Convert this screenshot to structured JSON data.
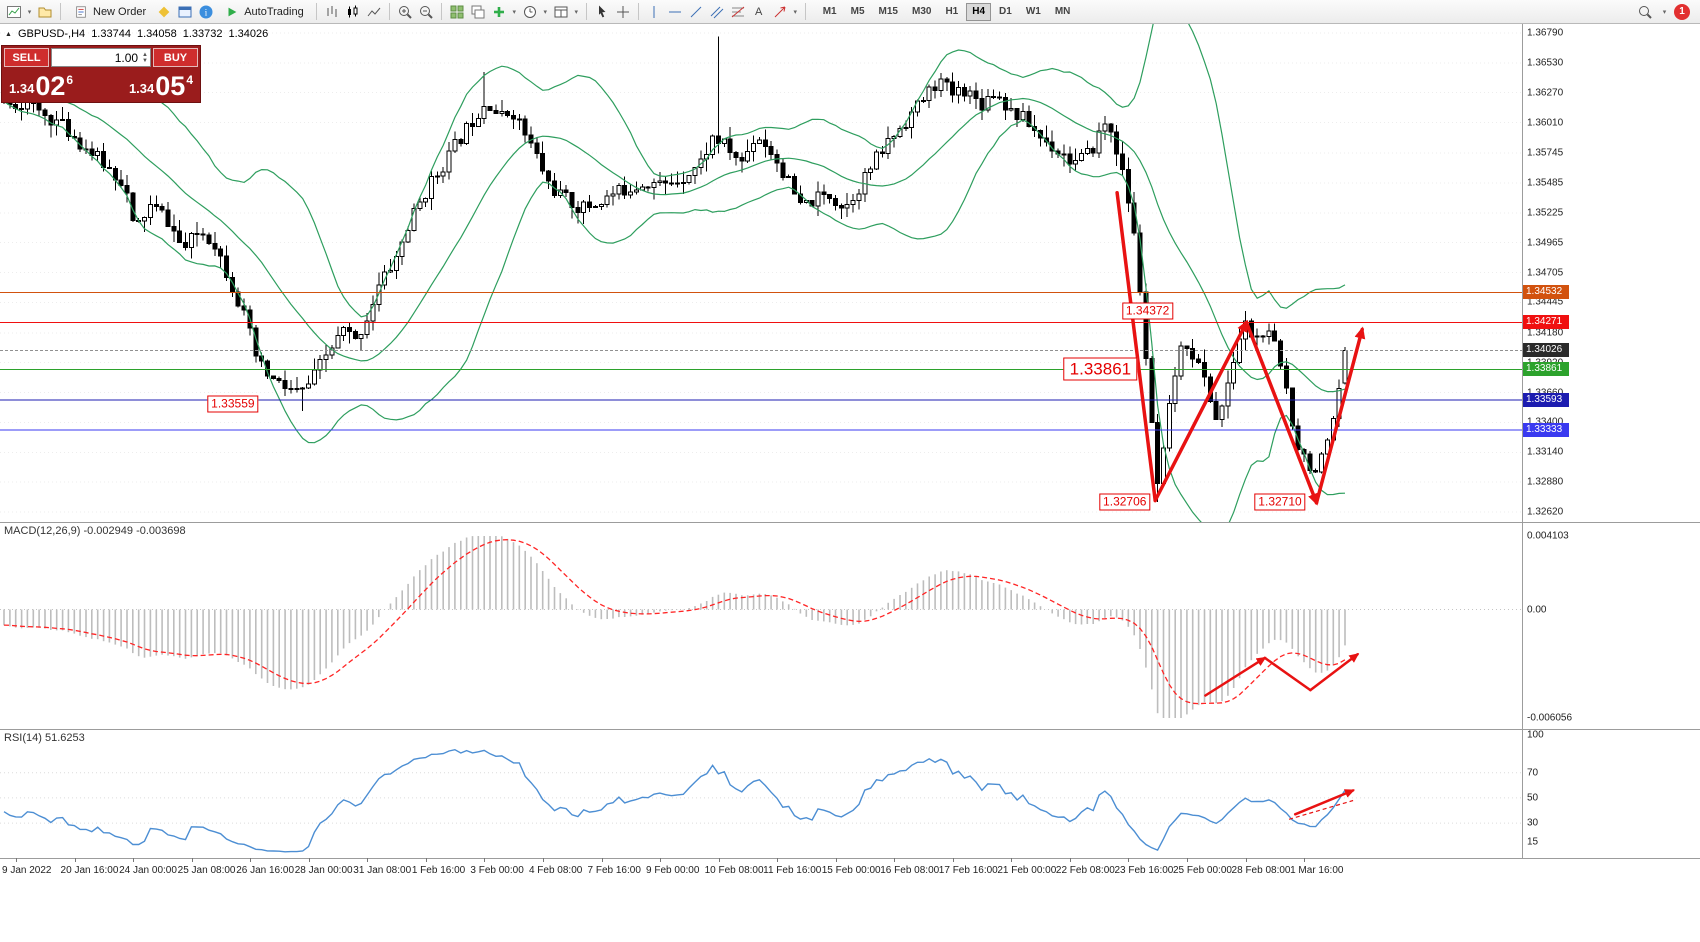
{
  "icons": {
    "caret_down": "▾",
    "spin_up": "▲",
    "spin_down": "▼",
    "text_tool": "A",
    "title_marker": "▲"
  },
  "toolbar": {
    "new_order_label": "New Order",
    "autotrading_label": "AutoTrading",
    "timeframes": [
      "M1",
      "M5",
      "M15",
      "M30",
      "H1",
      "H4",
      "D1",
      "W1",
      "MN"
    ],
    "active_timeframe": "H4",
    "notification_badge": "1"
  },
  "quote_panel": {
    "sell_label": "SELL",
    "buy_label": "BUY",
    "volume": "1.00",
    "sell_price": {
      "main": "1.34",
      "pips": "02",
      "pt": "6"
    },
    "buy_price": {
      "main": "1.34",
      "pips": "05",
      "pt": "4"
    }
  },
  "chart_header": {
    "symbol_period": "GBPUSD-,H4",
    "open": "1.33744",
    "high": "1.34058",
    "low": "1.33732",
    "close": "1.34026"
  },
  "chart_data": {
    "type": "candlestick",
    "symbol": "GBPUSD-",
    "timeframe": "H4",
    "price_axis_labels": [
      "1.36790",
      "1.36530",
      "1.36270",
      "1.36010",
      "1.35745",
      "1.35485",
      "1.35225",
      "1.34965",
      "1.34705",
      "1.34445",
      "1.34180",
      "1.33920",
      "1.33660",
      "1.33400",
      "1.33140",
      "1.32880",
      "1.32620"
    ],
    "price_scale": {
      "top": 1.3679,
      "bottom": 1.3262
    },
    "time_axis_labels": [
      "9 Jan 2022",
      "20 Jan 16:00",
      "24 Jan 00:00",
      "25 Jan 08:00",
      "26 Jan 16:00",
      "28 Jan 00:00",
      "31 Jan 08:00",
      "1 Feb 16:00",
      "3 Feb 00:00",
      "4 Feb 08:00",
      "7 Feb 16:00",
      "9 Feb 00:00",
      "10 Feb 08:00",
      "11 Feb 16:00",
      "15 Feb 00:00",
      "16 Feb 08:00",
      "17 Feb 16:00",
      "21 Feb 00:00",
      "22 Feb 08:00",
      "23 Feb 16:00",
      "25 Feb 00:00",
      "28 Feb 08:00",
      "1 Mar 16:00"
    ],
    "visible_candles": 230,
    "seed": 11,
    "last_candle": {
      "open": 1.33744,
      "high": 1.34058,
      "low": 1.33732,
      "close": 1.34026
    },
    "arrow_color": "#e81212",
    "price_path": [
      [
        0.0,
        1.3622
      ],
      [
        0.019,
        1.3615
      ],
      [
        0.042,
        1.36
      ],
      [
        0.064,
        1.3576
      ],
      [
        0.079,
        1.356
      ],
      [
        0.09,
        1.3548
      ],
      [
        0.097,
        1.3506
      ],
      [
        0.109,
        1.3528
      ],
      [
        0.12,
        1.352
      ],
      [
        0.134,
        1.349
      ],
      [
        0.146,
        1.3507
      ],
      [
        0.157,
        1.3497
      ],
      [
        0.169,
        1.3463
      ],
      [
        0.18,
        1.343
      ],
      [
        0.189,
        1.3392
      ],
      [
        0.199,
        1.3378
      ],
      [
        0.21,
        1.337
      ],
      [
        0.221,
        1.3365
      ],
      [
        0.23,
        1.3377
      ],
      [
        0.237,
        1.3392
      ],
      [
        0.247,
        1.341
      ],
      [
        0.254,
        1.3421
      ],
      [
        0.262,
        1.341
      ],
      [
        0.271,
        1.3432
      ],
      [
        0.28,
        1.346
      ],
      [
        0.292,
        1.3482
      ],
      [
        0.303,
        1.3515
      ],
      [
        0.314,
        1.354
      ],
      [
        0.325,
        1.356
      ],
      [
        0.336,
        1.358
      ],
      [
        0.348,
        1.3601
      ],
      [
        0.36,
        1.3622
      ],
      [
        0.37,
        1.3605
      ],
      [
        0.379,
        1.3612
      ],
      [
        0.389,
        1.359
      ],
      [
        0.398,
        1.357
      ],
      [
        0.407,
        1.3546
      ],
      [
        0.418,
        1.3535
      ],
      [
        0.43,
        1.3526
      ],
      [
        0.441,
        1.353
      ],
      [
        0.453,
        1.3538
      ],
      [
        0.467,
        1.3545
      ],
      [
        0.48,
        1.355
      ],
      [
        0.493,
        1.3546
      ],
      [
        0.506,
        1.3554
      ],
      [
        0.519,
        1.3565
      ],
      [
        0.529,
        1.3589
      ],
      [
        0.54,
        1.3578
      ],
      [
        0.55,
        1.3566
      ],
      [
        0.561,
        1.3591
      ],
      [
        0.571,
        1.3578
      ],
      [
        0.582,
        1.3556
      ],
      [
        0.594,
        1.3527
      ],
      [
        0.605,
        1.3534
      ],
      [
        0.616,
        1.3538
      ],
      [
        0.627,
        1.3527
      ],
      [
        0.638,
        1.3546
      ],
      [
        0.65,
        1.3568
      ],
      [
        0.662,
        1.3588
      ],
      [
        0.674,
        1.3605
      ],
      [
        0.686,
        1.3622
      ],
      [
        0.697,
        1.3638
      ],
      [
        0.707,
        1.3626
      ],
      [
        0.717,
        1.3631
      ],
      [
        0.728,
        1.3617
      ],
      [
        0.739,
        1.3629
      ],
      [
        0.75,
        1.3612
      ],
      [
        0.762,
        1.3603
      ],
      [
        0.774,
        1.3587
      ],
      [
        0.786,
        1.3577
      ],
      [
        0.798,
        1.3566
      ],
      [
        0.81,
        1.3574
      ],
      [
        0.82,
        1.36
      ],
      [
        0.827,
        1.3592
      ],
      [
        0.834,
        1.3556
      ],
      [
        0.841,
        1.352
      ],
      [
        0.848,
        1.3448
      ],
      [
        0.855,
        1.3345
      ],
      [
        0.861,
        1.3276
      ],
      [
        0.867,
        1.3335
      ],
      [
        0.874,
        1.3388
      ],
      [
        0.881,
        1.3412
      ],
      [
        0.889,
        1.3394
      ],
      [
        0.896,
        1.3375
      ],
      [
        0.904,
        1.3344
      ],
      [
        0.911,
        1.336
      ],
      [
        0.919,
        1.3406
      ],
      [
        0.926,
        1.3426
      ],
      [
        0.933,
        1.3411
      ],
      [
        0.941,
        1.3419
      ],
      [
        0.948,
        1.3405
      ],
      [
        0.956,
        1.3372
      ],
      [
        0.963,
        1.3326
      ],
      [
        0.971,
        1.3308
      ],
      [
        0.978,
        1.3297
      ],
      [
        0.985,
        1.3312
      ],
      [
        0.993,
        1.3344
      ],
      [
        1.0,
        1.34
      ]
    ],
    "wick_spikes": [
      {
        "f": 0.531,
        "high": 1.3676
      },
      {
        "f": 0.861,
        "low": 1.32706
      },
      {
        "f": 0.926,
        "high": 1.34372
      },
      {
        "f": 0.36,
        "high": 1.3645
      },
      {
        "f": 0.221,
        "low": 1.335
      }
    ],
    "bollinger": {
      "period": 20,
      "deviation": 2,
      "color": "#2e9e5e"
    },
    "levels": [
      {
        "price": 1.34532,
        "label": "1.34532",
        "color": "#d2520e",
        "badge": "#d2520e",
        "dash": false
      },
      {
        "price": 1.34271,
        "label": "1.34271",
        "color": "#f01010",
        "badge": "#f01010",
        "dash": false
      },
      {
        "price": 1.34026,
        "label": "1.34026",
        "color": "#909090",
        "badge": "#2b2b2b",
        "dash": true,
        "role": "current-price"
      },
      {
        "price": 1.33861,
        "label": "1.33861",
        "color": "#2ca22c",
        "badge": "#2ca22c",
        "dash": false
      },
      {
        "price": 1.33593,
        "label": "1.33593",
        "color": "#1c1cb0",
        "badge": "#1c1cb0",
        "dash": false
      },
      {
        "price": 1.33333,
        "label": "1.33333",
        "color": "#3a3af0",
        "badge": "#3a3af0",
        "dash": false
      }
    ],
    "annotations": [
      {
        "text": "1.34372",
        "x": 0.754,
        "price": 1.34372,
        "large": false
      },
      {
        "text": "1.33861",
        "x": 0.723,
        "price": 1.33861,
        "large": true
      },
      {
        "text": "1.33559",
        "x": 0.153,
        "price": 1.33559,
        "large": false
      },
      {
        "text": "1.32706",
        "x": 0.739,
        "price": 1.32706,
        "large": false
      },
      {
        "text": "1.32710",
        "x": 0.841,
        "price": 1.3271,
        "large": false
      }
    ],
    "trend_arrows": [
      {
        "from": [
          0.734,
          1.354
        ],
        "to": [
          0.759,
          1.3272
        ],
        "head": false
      },
      {
        "from": [
          0.759,
          1.3272
        ],
        "to": [
          0.819,
          1.3427
        ],
        "head": true
      },
      {
        "from": [
          0.819,
          1.3427
        ],
        "to": [
          0.865,
          1.327
        ],
        "head": true
      },
      {
        "from": [
          0.865,
          1.327
        ],
        "to": [
          0.895,
          1.3421
        ],
        "head": true
      }
    ],
    "macd": {
      "label": "MACD(12,26,9) -0.002949 -0.003698",
      "fast": 12,
      "slow": 26,
      "signal": 9,
      "axis_labels": [
        "0.004103",
        "0.00",
        "-0.006056"
      ],
      "max": 0.004103,
      "min": -0.006056,
      "histogram_color": "#bdbdbd",
      "signal_color": "#ff2525",
      "arrows": [
        {
          "from": [
            0.792,
            -0.0048
          ],
          "to": [
            0.831,
            -0.0027
          ],
          "head": true
        },
        {
          "from": [
            0.831,
            -0.0027
          ],
          "to": [
            0.861,
            -0.0045
          ],
          "head": false
        },
        {
          "from": [
            0.861,
            -0.0045
          ],
          "to": [
            0.892,
            -0.0025
          ],
          "head": true
        }
      ]
    },
    "rsi": {
      "label": "RSI(14) 51.6253",
      "period": 14,
      "axis_labels": [
        "100",
        "70",
        "50",
        "30",
        "15"
      ],
      "levels_dotted": [
        70,
        50,
        30
      ],
      "max": 100,
      "min": 15,
      "color": "#4c8ed3",
      "arrow": {
        "from": [
          0.851,
          37
        ],
        "to": [
          0.889,
          56
        ],
        "head": true
      },
      "dashed_line": {
        "from": [
          0.847,
          33
        ],
        "to": [
          0.889,
          48
        ]
      }
    }
  }
}
